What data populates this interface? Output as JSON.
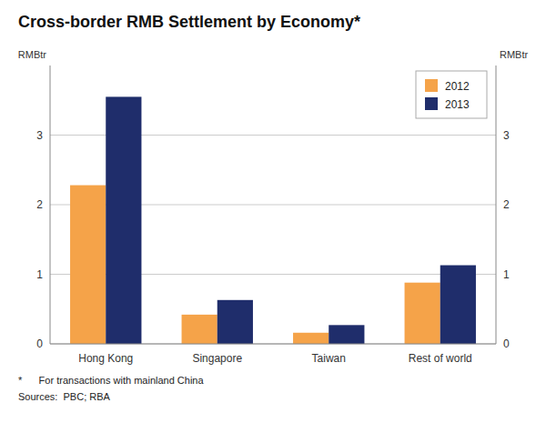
{
  "chart_data": {
    "type": "bar",
    "title": "Cross-border RMB Settlement by Economy*",
    "categories": [
      "Hong Kong",
      "Singapore",
      "Taiwan",
      "Rest of world"
    ],
    "series": [
      {
        "name": "2012",
        "color": "#F5A349",
        "values": [
          2.28,
          0.42,
          0.16,
          0.88
        ]
      },
      {
        "name": "2013",
        "color": "#1F2D6B",
        "values": [
          3.55,
          0.63,
          0.27,
          1.13
        ]
      }
    ],
    "ylim": [
      0,
      4.0
    ],
    "yticks": [
      0,
      1,
      2,
      3
    ],
    "y2lim": [
      0,
      4.0
    ],
    "y2ticks": [
      0,
      1,
      2,
      3
    ],
    "ylabel": "RMBtr",
    "y2label": "RMBtr",
    "annotations": [
      "*      For transactions with mainland China",
      "Sources:  PBC; RBA"
    ],
    "grid": true,
    "legend": "upper right"
  }
}
